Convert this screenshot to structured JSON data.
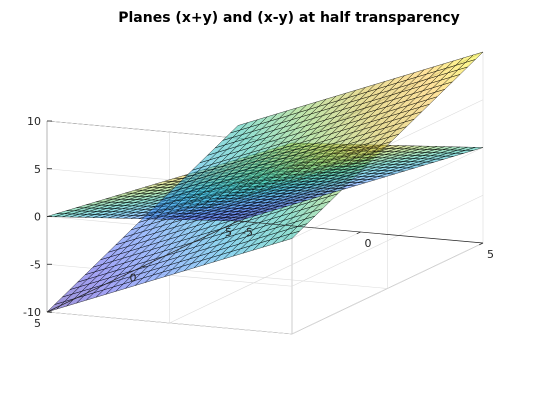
{
  "chart_data": {
    "type": "surface",
    "title": "Planes (x+y) and (x-y) at half transparency",
    "xlabel": "",
    "ylabel": "",
    "zlabel": "",
    "x": {
      "min": -5,
      "max": 5,
      "ticks": [
        -5,
        0,
        5
      ],
      "tick_labels": [
        "-5",
        "0",
        "5"
      ]
    },
    "y": {
      "min": -5,
      "max": 5,
      "ticks": [
        -5,
        0,
        5
      ],
      "tick_labels": [
        "-5",
        "0",
        "5"
      ]
    },
    "z": {
      "min": -10,
      "max": 10,
      "ticks": [
        -10,
        -5,
        0,
        5,
        10
      ],
      "tick_labels": [
        "-10",
        "-5",
        "0",
        "5",
        "10"
      ]
    },
    "grid": true,
    "alpha": 0.5,
    "colormap": "parula",
    "colormap_stops": [
      "#3e26a8",
      "#4746eb",
      "#3e7ef8",
      "#1caadf",
      "#24bfa7",
      "#81cc59",
      "#d0ba2f",
      "#fdc338",
      "#f9fb15"
    ],
    "edge_color": "#000000",
    "surfaces": [
      {
        "expression": "x+y",
        "mesh_step": 0.4,
        "x_range": [
          -5,
          5
        ],
        "y_range": [
          -5,
          5
        ],
        "z_range": [
          -10,
          10
        ]
      },
      {
        "expression": "x-y",
        "mesh_step": 0.4,
        "x_range": [
          -5,
          5
        ],
        "y_range": [
          -5,
          5
        ],
        "z_range": [
          -10,
          10
        ]
      }
    ]
  }
}
